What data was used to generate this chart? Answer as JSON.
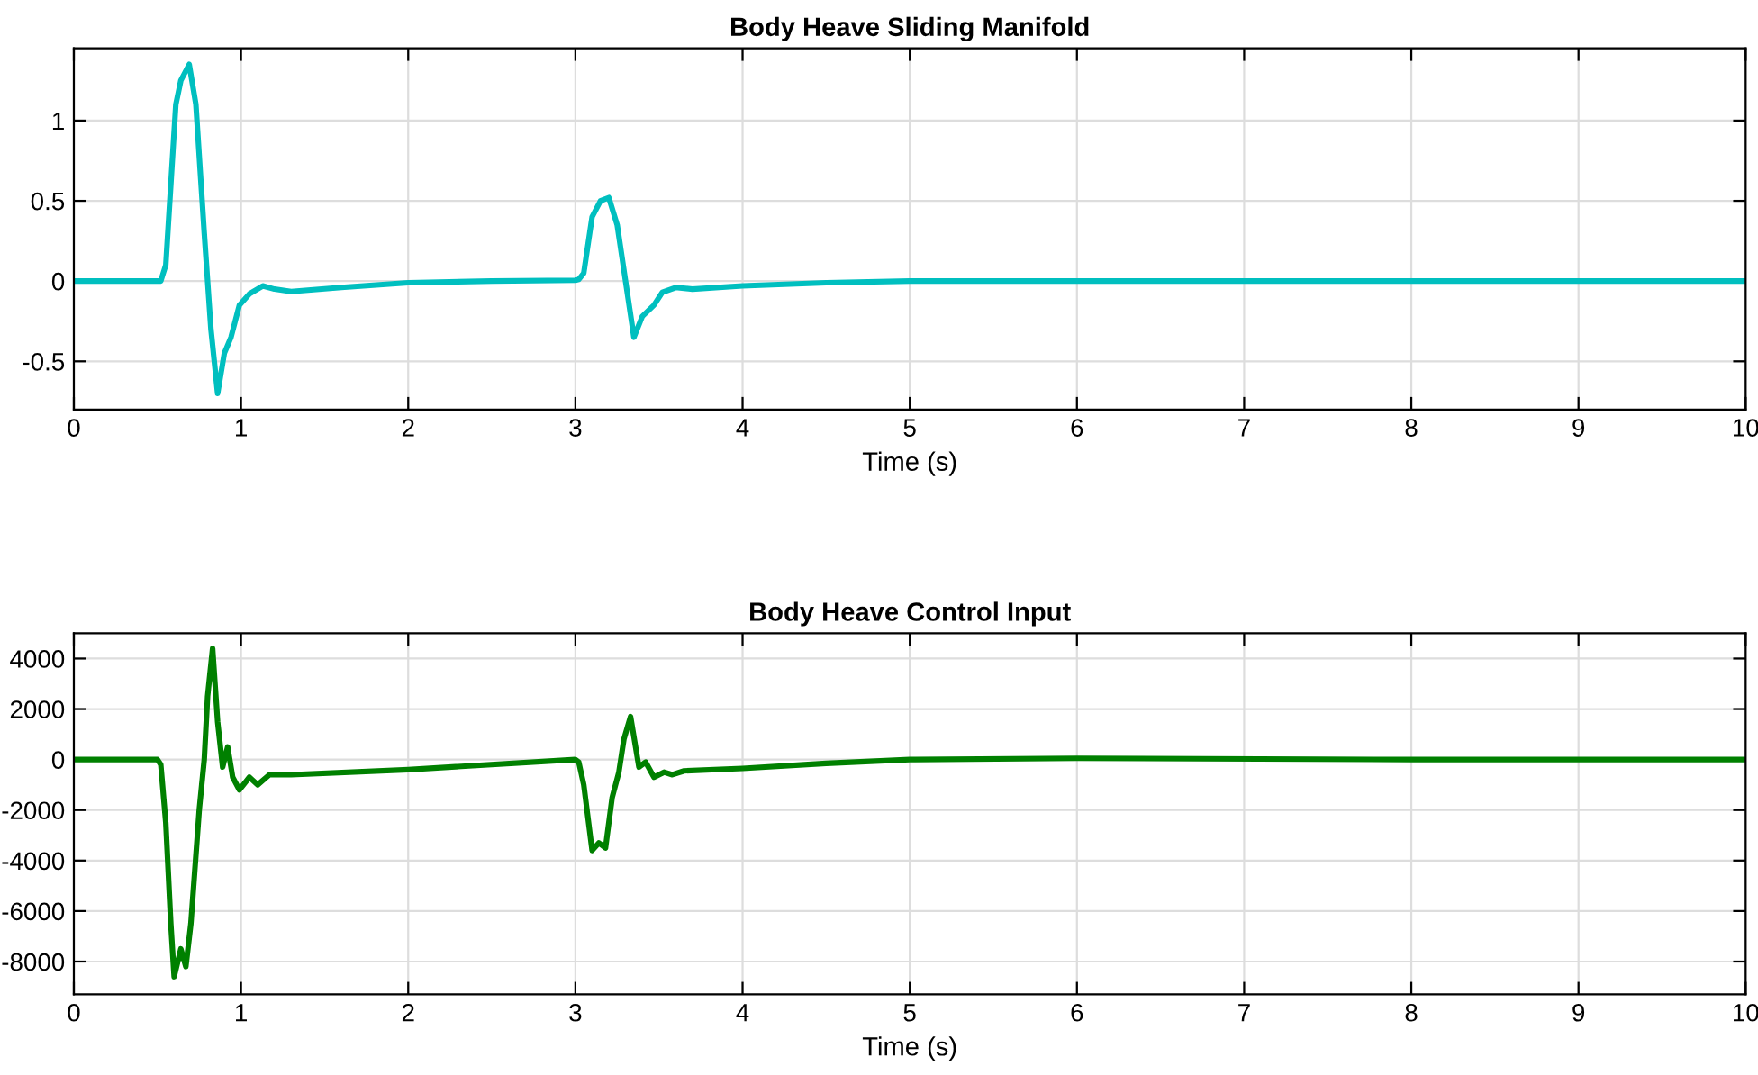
{
  "chart_data": [
    {
      "type": "line",
      "title": "Body Heave Sliding Manifold",
      "xlabel": "Time (s)",
      "xlim": [
        0,
        10
      ],
      "xticks": [
        0,
        1,
        2,
        3,
        4,
        5,
        6,
        7,
        8,
        9,
        10
      ],
      "ylim": [
        -0.8,
        1.45
      ],
      "yticks": [
        -0.5,
        0,
        0.5,
        1
      ],
      "grid": true,
      "series": [
        {
          "color": "#00bfbf",
          "x": [
            0,
            0.5,
            0.52,
            0.55,
            0.58,
            0.61,
            0.64,
            0.69,
            0.73,
            0.78,
            0.82,
            0.86,
            0.9,
            0.94,
            0.99,
            1.05,
            1.13,
            1.2,
            1.3,
            1.6,
            2.0,
            2.5,
            3.0,
            3.02,
            3.05,
            3.1,
            3.15,
            3.2,
            3.25,
            3.3,
            3.35,
            3.4,
            3.47,
            3.52,
            3.6,
            3.7,
            4.0,
            4.5,
            5.0,
            10
          ],
          "values": [
            0,
            0,
            0,
            0.1,
            0.6,
            1.1,
            1.25,
            1.35,
            1.1,
            0.3,
            -0.3,
            -0.7,
            -0.45,
            -0.35,
            -0.15,
            -0.08,
            -0.03,
            -0.05,
            -0.065,
            -0.04,
            -0.01,
            0,
            0.005,
            0.01,
            0.05,
            0.4,
            0.5,
            0.52,
            0.35,
            0,
            -0.35,
            -0.22,
            -0.15,
            -0.07,
            -0.04,
            -0.05,
            -0.03,
            -0.01,
            0,
            0
          ]
        }
      ]
    },
    {
      "type": "line",
      "title": "Body Heave Control Input",
      "xlabel": "Time (s)",
      "xlim": [
        0,
        10
      ],
      "xticks": [
        0,
        1,
        2,
        3,
        4,
        5,
        6,
        7,
        8,
        9,
        10
      ],
      "ylim": [
        -9300,
        5000
      ],
      "yticks": [
        -8000,
        -6000,
        -4000,
        -2000,
        0,
        2000,
        4000
      ],
      "grid": true,
      "series": [
        {
          "color": "#008000",
          "x": [
            0,
            0.5,
            0.52,
            0.55,
            0.58,
            0.6,
            0.64,
            0.67,
            0.7,
            0.75,
            0.78,
            0.8,
            0.83,
            0.86,
            0.89,
            0.92,
            0.95,
            0.99,
            1.05,
            1.1,
            1.17,
            1.3,
            2.0,
            3.0,
            3.02,
            3.05,
            3.1,
            3.14,
            3.18,
            3.22,
            3.26,
            3.29,
            3.33,
            3.38,
            3.42,
            3.47,
            3.53,
            3.58,
            3.65,
            4.0,
            4.5,
            5.0,
            6.0,
            8.0,
            10
          ],
          "values": [
            0,
            0,
            -200,
            -2500,
            -6500,
            -8600,
            -7500,
            -8200,
            -6500,
            -2000,
            0,
            2500,
            4400,
            1500,
            -300,
            500,
            -700,
            -1200,
            -700,
            -1000,
            -600,
            -600,
            -400,
            0,
            -100,
            -1000,
            -3600,
            -3300,
            -3500,
            -1500,
            -500,
            800,
            1700,
            -300,
            -100,
            -700,
            -500,
            -600,
            -450,
            -350,
            -150,
            0,
            50,
            0,
            0
          ]
        }
      ]
    }
  ]
}
